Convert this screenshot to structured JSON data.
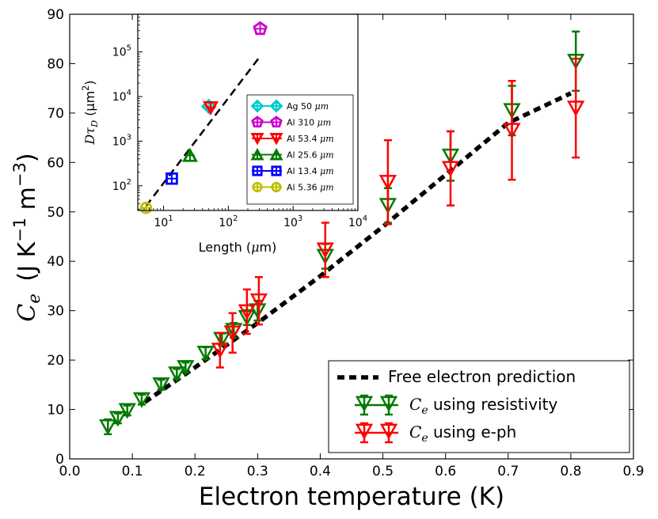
{
  "chart_data": [
    {
      "type": "scatter",
      "xlabel": "Electron temperature (K)",
      "ylabel": {
        "symbol": "C",
        "subscript": "e",
        "units": "(J K",
        "exp1": "−1",
        "units2": " m",
        "exp2": "−3",
        "close": ")"
      },
      "xlim": [
        0.0,
        0.9
      ],
      "ylim": [
        0,
        90
      ],
      "xticks": [
        0.0,
        0.1,
        0.2,
        0.3,
        0.4,
        0.5,
        0.6,
        0.7,
        0.8,
        0.9
      ],
      "xtick_labels": [
        "0.0",
        "0.1",
        "0.2",
        "0.3",
        "0.4",
        "0.5",
        "0.6",
        "0.7",
        "0.8",
        "0.9"
      ],
      "yticks": [
        0,
        10,
        20,
        30,
        40,
        50,
        60,
        70,
        80,
        90
      ],
      "ytick_labels": [
        "0",
        "10",
        "20",
        "30",
        "40",
        "50",
        "60",
        "70",
        "80",
        "90"
      ],
      "legend_position": "bottom-right",
      "legend": [
        {
          "label": "Free electron prediction",
          "style": "dashed-line",
          "color": "#000000"
        },
        {
          "math": "C",
          "math_sub": "e",
          "label": " using resistivity",
          "style": "triangle-down",
          "color": "#007a00"
        },
        {
          "math": "C",
          "math_sub": "e",
          "label": " using e-ph",
          "style": "triangle-down",
          "color": "#ff0000"
        }
      ],
      "series": [
        {
          "name": "Free electron prediction",
          "color": "#000000",
          "line": "dashed",
          "x": [
            0.12,
            0.2,
            0.3,
            0.4,
            0.5,
            0.6,
            0.7,
            0.8
          ],
          "y": [
            11.5,
            18.5,
            27.5,
            37,
            47,
            57.5,
            68,
            74
          ]
        },
        {
          "name": "Ce using resistivity",
          "color": "#007a00",
          "marker": "triangle-down",
          "points": [
            {
              "x": 0.061,
              "y": 6.5,
              "err": 1.5
            },
            {
              "x": 0.077,
              "y": 8.2,
              "err": 1.0
            },
            {
              "x": 0.092,
              "y": 9.8,
              "err": 1.0
            },
            {
              "x": 0.115,
              "y": 12.0,
              "err": 1.0
            },
            {
              "x": 0.146,
              "y": 15.0,
              "err": 1.0
            },
            {
              "x": 0.171,
              "y": 17.2,
              "err": 1.0
            },
            {
              "x": 0.185,
              "y": 18.5,
              "err": 1.0
            },
            {
              "x": 0.217,
              "y": 21.4,
              "err": 1.2
            },
            {
              "x": 0.243,
              "y": 24.2,
              "err": 1.2
            },
            {
              "x": 0.262,
              "y": 26.0,
              "err": 1.5
            },
            {
              "x": 0.283,
              "y": 28.6,
              "err": 1.5
            },
            {
              "x": 0.3,
              "y": 30.0,
              "err": 2.0
            },
            {
              "x": 0.408,
              "y": 41.0,
              "err": 2.5
            },
            {
              "x": 0.508,
              "y": 51.3,
              "err": 3.5
            },
            {
              "x": 0.608,
              "y": 61.3,
              "err": 5.0
            },
            {
              "x": 0.706,
              "y": 70.5,
              "err": 5.0
            },
            {
              "x": 0.808,
              "y": 80.5,
              "err": 6.0
            }
          ]
        },
        {
          "name": "Ce using e-ph",
          "color": "#ff0000",
          "marker": "triangle-down",
          "points": [
            {
              "x": 0.24,
              "y": 22.0,
              "err": 3.5
            },
            {
              "x": 0.26,
              "y": 25.5,
              "err": 4.0
            },
            {
              "x": 0.283,
              "y": 29.8,
              "err": 4.5
            },
            {
              "x": 0.302,
              "y": 32.0,
              "err": 4.8
            },
            {
              "x": 0.408,
              "y": 42.3,
              "err": 5.5
            },
            {
              "x": 0.508,
              "y": 56.0,
              "err": 8.5
            },
            {
              "x": 0.608,
              "y": 58.8,
              "err": 7.5
            },
            {
              "x": 0.706,
              "y": 66.5,
              "err": 10.0
            },
            {
              "x": 0.808,
              "y": 71.0,
              "err": 10.0
            }
          ]
        }
      ]
    },
    {
      "type": "scatter",
      "scale": "log-log",
      "xlabel": {
        "text": "Length (",
        "mu": "μ",
        "unit": "m)"
      },
      "ylabel": {
        "text": "Dτ",
        "sub": "D",
        "units": " (μm",
        "sup": "2",
        "close": ")"
      },
      "xlim": [
        4,
        10000
      ],
      "ylim": [
        28,
        700000
      ],
      "xticks": [
        10,
        100,
        1000,
        10000
      ],
      "xtick_labels": [
        {
          "base": "10",
          "exp": "1"
        },
        {
          "base": "10",
          "exp": "2"
        },
        {
          "base": "10",
          "exp": "3"
        },
        {
          "base": "10",
          "exp": "4"
        }
      ],
      "yticks": [
        100,
        1000,
        10000,
        100000
      ],
      "ytick_labels": [
        {
          "base": "10",
          "exp": "2"
        },
        {
          "base": "10",
          "exp": "3"
        },
        {
          "base": "10",
          "exp": "4"
        },
        {
          "base": "10",
          "exp": "5"
        }
      ],
      "fit_line": {
        "style": "dashed",
        "color": "#000000",
        "x": [
          5.36,
          310
        ],
        "y": [
          35,
          80000
        ]
      },
      "legend_position": "right",
      "series": [
        {
          "name": "Ag 50 μm",
          "label": "Ag 50",
          "unit": "μm",
          "x": 50,
          "y": 6000,
          "color": "#00cccc",
          "marker": "diamond"
        },
        {
          "name": "Al 310 μm",
          "label": "Al 310",
          "unit": "μm",
          "x": 310,
          "y": 330000,
          "color": "#cc00cc",
          "marker": "pentagon"
        },
        {
          "name": "Al 53.4 μm",
          "label": "Al 53.4",
          "unit": "μm",
          "x": 53.4,
          "y": 5600,
          "color": "#ff0000",
          "marker": "triangle-down"
        },
        {
          "name": "Al 25.6 μm",
          "label": "Al 25.6",
          "unit": "μm",
          "x": 25.6,
          "y": 480,
          "color": "#007a00",
          "marker": "triangle-up"
        },
        {
          "name": "Al 13.4 μm",
          "label": "Al 13.4",
          "unit": "μm",
          "x": 13.4,
          "y": 145,
          "color": "#0000ff",
          "marker": "square"
        },
        {
          "name": "Al 5.36 μm",
          "label": "Al 5.36",
          "unit": "μm",
          "x": 5.36,
          "y": 32,
          "color": "#bfbf00",
          "marker": "circle"
        }
      ]
    }
  ]
}
